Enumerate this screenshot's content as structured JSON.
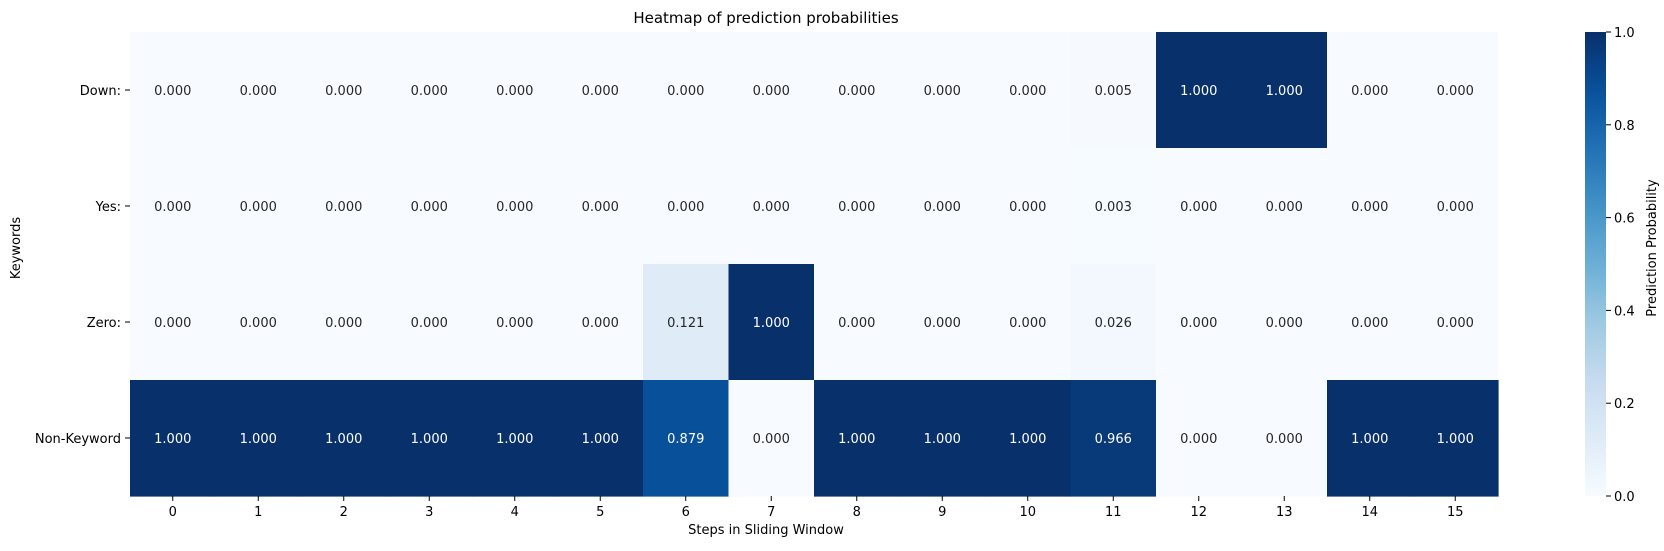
{
  "chart_data": {
    "type": "heatmap",
    "title": "Heatmap of prediction probabilities",
    "xlabel": "Steps in Sliding Window",
    "ylabel": "Keywords",
    "x": [
      "0",
      "1",
      "2",
      "3",
      "4",
      "5",
      "6",
      "7",
      "8",
      "9",
      "10",
      "11",
      "12",
      "13",
      "14",
      "15"
    ],
    "y": [
      "Down:",
      "Yes:",
      "Zero:",
      "Non-Keyword"
    ],
    "values": [
      [
        0.0,
        0.0,
        0.0,
        0.0,
        0.0,
        0.0,
        0.0,
        0.0,
        0.0,
        0.0,
        0.0,
        0.005,
        1.0,
        1.0,
        0.0,
        0.0
      ],
      [
        0.0,
        0.0,
        0.0,
        0.0,
        0.0,
        0.0,
        0.0,
        0.0,
        0.0,
        0.0,
        0.0,
        0.003,
        0.0,
        0.0,
        0.0,
        0.0
      ],
      [
        0.0,
        0.0,
        0.0,
        0.0,
        0.0,
        0.0,
        0.121,
        1.0,
        0.0,
        0.0,
        0.0,
        0.026,
        0.0,
        0.0,
        0.0,
        0.0
      ],
      [
        1.0,
        1.0,
        1.0,
        1.0,
        1.0,
        1.0,
        0.879,
        0.0,
        1.0,
        1.0,
        1.0,
        0.966,
        0.0,
        0.0,
        1.0,
        1.0
      ]
    ],
    "value_format": "3 decimals",
    "colorbar": {
      "label": "Prediction Probability",
      "range": [
        0.0,
        1.0
      ],
      "ticks": [
        "0.0",
        "0.2",
        "0.4",
        "0.6",
        "0.8",
        "1.0"
      ],
      "colormap": "Blues"
    },
    "colors": {
      "low": "#f7fbff",
      "high": "#08306b",
      "text_light": "#ffffff",
      "text_dark": "#262626"
    },
    "grid": false,
    "legend": "colorbar-right"
  }
}
